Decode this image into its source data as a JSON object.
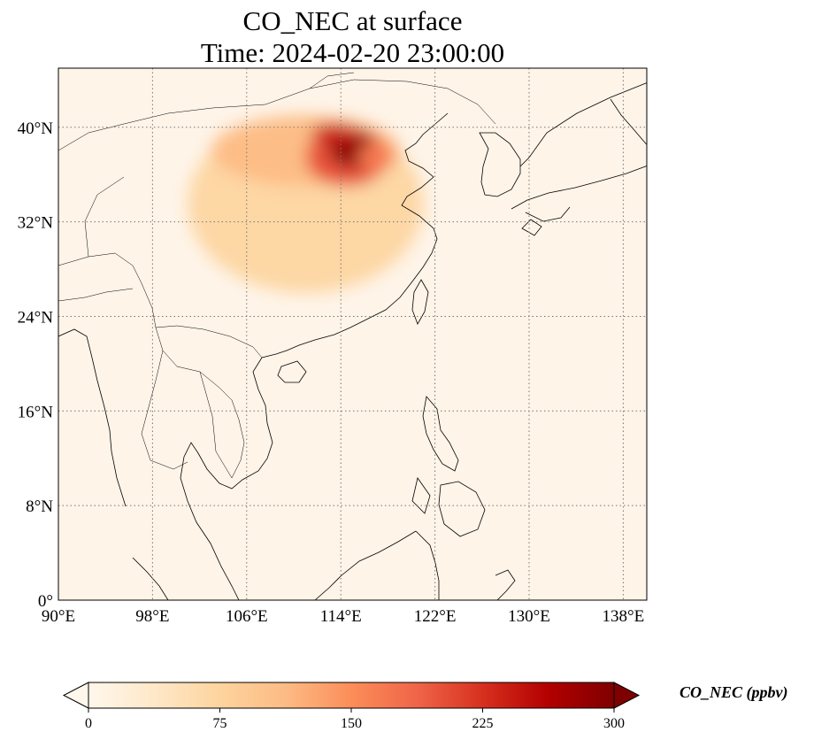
{
  "map": {
    "title": "CO_NEC at surface",
    "subtitle": "Time: 2024-02-20 23:00:00",
    "variable": "CO_NEC",
    "level": "surface",
    "time": "2024-02-20 23:00:00",
    "extent": {
      "lon_min": 90,
      "lon_max": 140,
      "lat_min": 0,
      "lat_max": 45
    },
    "gridlines": true,
    "lon_ticks": [
      {
        "value": 90,
        "label": "90°E"
      },
      {
        "value": 98,
        "label": "98°E"
      },
      {
        "value": 106,
        "label": "106°E"
      },
      {
        "value": 114,
        "label": "114°E"
      },
      {
        "value": 122,
        "label": "122°E"
      },
      {
        "value": 130,
        "label": "130°E"
      },
      {
        "value": 138,
        "label": "138°E"
      }
    ],
    "lat_ticks": [
      {
        "value": 0,
        "label": "0°"
      },
      {
        "value": 8,
        "label": "8°N"
      },
      {
        "value": 16,
        "label": "16°N"
      },
      {
        "value": 24,
        "label": "24°N"
      },
      {
        "value": 32,
        "label": "32°N"
      },
      {
        "value": 40,
        "label": "40°N"
      }
    ],
    "colors": {
      "low": "#fff5eb",
      "high": "#7f0000",
      "coastline": "#000000",
      "gridline": "#777777"
    },
    "plume": [
      {
        "lon": 111,
        "lat": 33.5,
        "rlon": 10,
        "rlat": 7.5,
        "value": 70
      },
      {
        "lon": 111,
        "lat": 38,
        "rlon": 8,
        "rlat": 3,
        "value": 110
      },
      {
        "lon": 114.5,
        "lat": 37.5,
        "rlon": 3.5,
        "rlat": 2.5,
        "value": 200
      },
      {
        "lon": 115,
        "lat": 38.2,
        "rlon": 2,
        "rlat": 1.6,
        "value": 290
      },
      {
        "lon": 113.5,
        "lat": 39.5,
        "rlon": 2,
        "rlat": 0.8,
        "value": 240
      },
      {
        "lon": 117,
        "lat": 37.5,
        "rlon": 1.5,
        "rlat": 1.2,
        "value": 170
      }
    ]
  },
  "colorbar": {
    "label": "CO_NEC (ppbv)",
    "min": 0,
    "max": 300,
    "extend": "both",
    "cmap": "OrRd",
    "ticks": [
      {
        "value": 0,
        "label": "0"
      },
      {
        "value": 75,
        "label": "75"
      },
      {
        "value": 150,
        "label": "150"
      },
      {
        "value": 225,
        "label": "225"
      },
      {
        "value": 300,
        "label": "300"
      }
    ]
  }
}
